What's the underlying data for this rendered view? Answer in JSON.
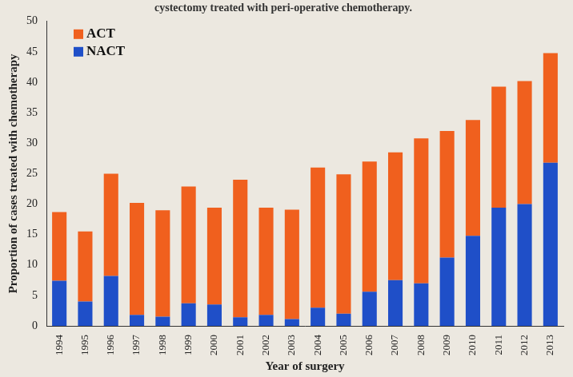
{
  "chart_data": {
    "type": "bar",
    "title": "cystectomy treated with peri-operative chemotherapy.",
    "x_label": "Year of surgery",
    "y_label": "Proportion of cases treated with chemotherapy",
    "categories": [
      "1994",
      "1995",
      "1996",
      "1997",
      "1998",
      "1999",
      "2000",
      "2001",
      "2002",
      "2003",
      "2004",
      "2005",
      "2006",
      "2007",
      "2008",
      "2009",
      "2010",
      "2011",
      "2012",
      "2013"
    ],
    "series": [
      {
        "name": "NACT",
        "color": "#1f4fc8",
        "values": [
          7.4,
          4,
          8.2,
          1.8,
          1.5,
          3.7,
          3.5,
          1.4,
          1.8,
          1.1,
          3,
          2,
          5.6,
          7.5,
          7,
          11.2,
          14.8,
          19.4,
          20,
          26.8
        ]
      },
      {
        "name": "ACT",
        "color": "#f0601e",
        "values": [
          11.3,
          11.5,
          16.8,
          18.4,
          17.5,
          19.2,
          15.9,
          22.6,
          17.6,
          18,
          23,
          22.9,
          21.4,
          21,
          23.8,
          20.8,
          19,
          19.9,
          20.2,
          18
        ]
      }
    ],
    "stacked": true,
    "ylim": [
      0,
      50
    ],
    "yticks": [
      0,
      5,
      10,
      15,
      20,
      25,
      30,
      35,
      40,
      45,
      50
    ],
    "grid": false,
    "legend": "upper left"
  }
}
